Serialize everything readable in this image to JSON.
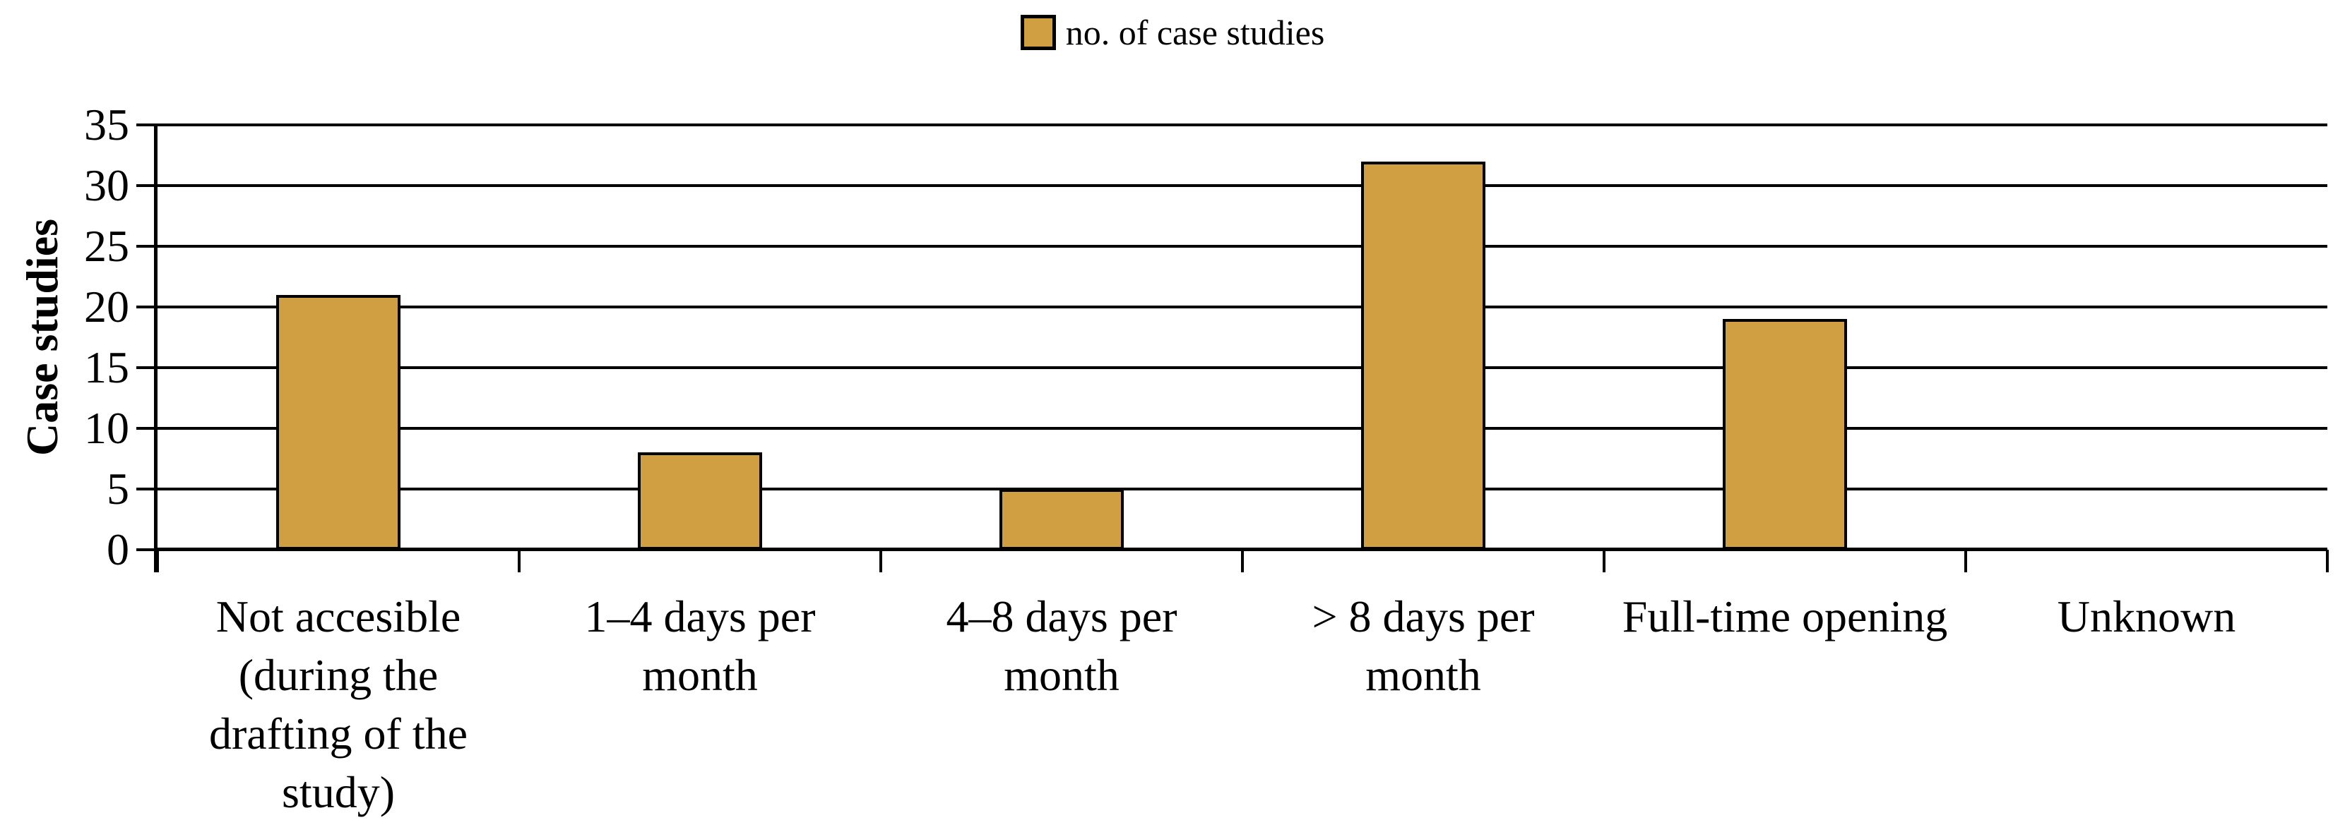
{
  "chart_data": {
    "type": "bar",
    "title": "",
    "xlabel": "",
    "ylabel": "Case studies",
    "categories": [
      "Not accesible (during the drafting of the study)",
      "1–4 days per month",
      "4–8 days per month",
      "> 8 days per month",
      "Full-time opening",
      "Unknown"
    ],
    "category_lines": [
      [
        "Not accesible",
        "(during the",
        "drafting of the",
        "study)"
      ],
      [
        "1–4 days per",
        "month"
      ],
      [
        "4–8 days per",
        "month"
      ],
      [
        "> 8 days per",
        "month"
      ],
      [
        "Full-time opening"
      ],
      [
        "Unknown"
      ]
    ],
    "series": [
      {
        "name": "no. of case studies",
        "values": [
          21,
          8,
          5,
          32,
          19,
          0
        ]
      }
    ],
    "ylim": [
      0,
      35
    ],
    "yticks": [
      0,
      5,
      10,
      15,
      20,
      25,
      30,
      35
    ],
    "grid": "horizontal",
    "legend_position": "top-center",
    "bar_color": "#D09F42",
    "bar_border_color": "#000000",
    "axis_color": "#000000"
  },
  "legend": {
    "label": "no. of case studies",
    "swatch_color": "#D09F42"
  },
  "y_axis": {
    "title": "Case studies"
  }
}
